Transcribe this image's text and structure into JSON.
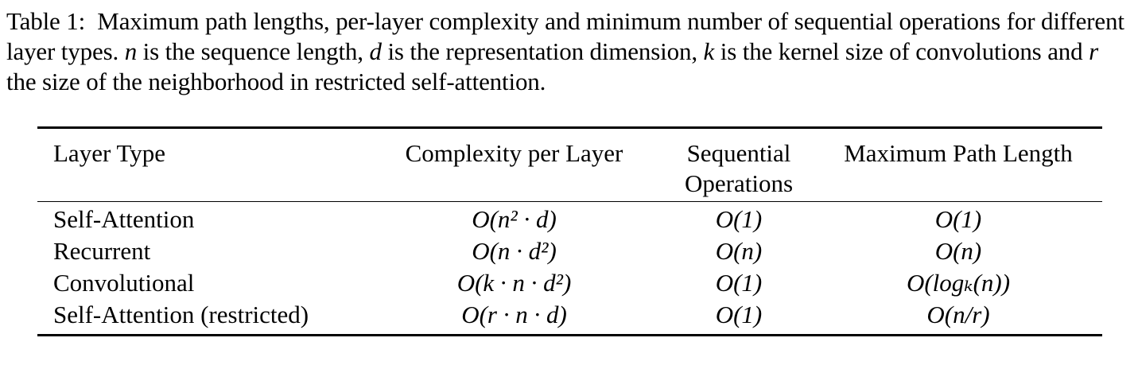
{
  "caption": {
    "label": "Table 1:",
    "text_1": "Maximum path lengths, per-layer complexity and minimum number of sequential operations for different layer types.",
    "var_n": "n",
    "text_2": "is the sequence length,",
    "var_d": "d",
    "text_3": "is the representation dimension,",
    "var_k": "k",
    "text_4": "is the kernel size of convolutions and",
    "var_r": "r",
    "text_5": "the size of the neighborhood in restricted self-attention."
  },
  "table": {
    "headers": {
      "layer_type": "Layer Type",
      "complexity": "Complexity per Layer",
      "sequential_line1": "Sequential",
      "sequential_line2": "Operations",
      "max_path": "Maximum Path Length"
    },
    "rows": [
      {
        "layer_type": "Self-Attention",
        "complexity": "O(n² · d)",
        "sequential": "O(1)",
        "max_path": "O(1)"
      },
      {
        "layer_type": "Recurrent",
        "complexity": "O(n · d²)",
        "sequential": "O(n)",
        "max_path": "O(n)"
      },
      {
        "layer_type": "Convolutional",
        "complexity": "O(k · n · d²)",
        "sequential": "O(1)",
        "max_path": "O(logₖ(n))"
      },
      {
        "layer_type": "Self-Attention (restricted)",
        "complexity": "O(r · n · d)",
        "sequential": "O(1)",
        "max_path": "O(n/r)"
      }
    ]
  }
}
